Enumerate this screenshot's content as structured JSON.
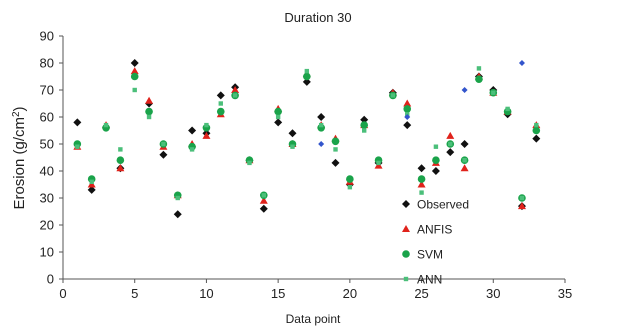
{
  "chart_data": {
    "type": "scatter",
    "title": "Duration 30",
    "xlabel": "Data point",
    "ylabel": "Erosion (g/cm2)",
    "ylabel_main": "Erosion (g/cm",
    "ylabel_sup": "2",
    "ylabel_end": ")",
    "xlim": [
      0,
      35
    ],
    "ylim": [
      0,
      90
    ],
    "xticks": [
      0,
      5,
      10,
      15,
      20,
      25,
      30,
      35
    ],
    "yticks": [
      0,
      10,
      20,
      30,
      40,
      50,
      60,
      70,
      80,
      90
    ],
    "grid": false,
    "legend_position": "right-middle",
    "x": [
      1,
      2,
      3,
      4,
      5,
      6,
      7,
      8,
      9,
      10,
      11,
      12,
      13,
      14,
      15,
      16,
      17,
      18,
      19,
      20,
      21,
      22,
      23,
      24,
      25,
      26,
      27,
      28,
      29,
      30,
      31,
      32,
      33
    ],
    "series": [
      {
        "name": "Observed",
        "marker": "diamond",
        "color": "#111111",
        "x": [
          1,
          2,
          3,
          4,
          5,
          6,
          7,
          8,
          9,
          10,
          11,
          12,
          13,
          14,
          15,
          16,
          17,
          18,
          19,
          20,
          21,
          22,
          23,
          24,
          25,
          26,
          27,
          28,
          29,
          30,
          31,
          32,
          33
        ],
        "values": [
          58,
          33,
          56,
          41,
          80,
          65,
          46,
          24,
          55,
          54,
          68,
          71,
          44,
          26,
          58,
          54,
          73,
          60,
          43,
          35,
          59,
          43,
          69,
          57,
          41,
          40,
          47,
          50,
          75,
          70,
          61,
          27,
          52
        ]
      },
      {
        "name": "ANFIS",
        "marker": "triangle",
        "color": "#e0221b",
        "x": [
          1,
          2,
          3,
          4,
          5,
          6,
          7,
          8,
          9,
          10,
          11,
          12,
          13,
          14,
          15,
          16,
          17,
          18,
          19,
          20,
          21,
          22,
          23,
          24,
          25,
          26,
          27,
          28,
          29,
          30,
          31,
          32,
          33
        ],
        "values": [
          49,
          35,
          57,
          41,
          77,
          66,
          49,
          31,
          50,
          53,
          61,
          70,
          44,
          29,
          63,
          50,
          76,
          57,
          52,
          36,
          57,
          42,
          69,
          65,
          35,
          43,
          53,
          41,
          75,
          69,
          62,
          27,
          57
        ]
      },
      {
        "name": "SVM",
        "marker": "circle",
        "color": "#1aa34a",
        "x": [
          1,
          2,
          3,
          4,
          5,
          6,
          7,
          8,
          9,
          10,
          11,
          12,
          13,
          14,
          15,
          16,
          17,
          18,
          19,
          20,
          21,
          22,
          23,
          24,
          25,
          26,
          27,
          28,
          29,
          30,
          31,
          32,
          33
        ],
        "values": [
          50,
          37,
          56,
          44,
          75,
          62,
          50,
          31,
          49,
          56,
          62,
          68,
          44,
          31,
          62,
          50,
          75,
          56,
          51,
          37,
          57,
          44,
          68,
          63,
          37,
          44,
          50,
          44,
          74,
          69,
          62,
          30,
          55
        ]
      },
      {
        "name": "ANN",
        "marker": "square",
        "color": "#4bbf7a",
        "x": [
          1,
          2,
          3,
          4,
          5,
          6,
          7,
          8,
          9,
          10,
          11,
          12,
          13,
          14,
          15,
          16,
          17,
          18,
          19,
          20,
          21,
          22,
          23,
          24,
          25,
          26,
          27,
          28,
          29,
          30,
          31,
          32,
          33
        ],
        "values": [
          49,
          36,
          57,
          48,
          70,
          60,
          50,
          30,
          48,
          57,
          65,
          68,
          43,
          31,
          60,
          49,
          77,
          57,
          48,
          34,
          55,
          43,
          68,
          61,
          32,
          49,
          50,
          44,
          78,
          69,
          63,
          30,
          57
        ]
      },
      {
        "name": "",
        "marker": "small-diamond",
        "color": "#3355cc",
        "x": [
          18,
          24,
          28,
          32
        ],
        "values": [
          50,
          60,
          70,
          80
        ]
      }
    ]
  }
}
